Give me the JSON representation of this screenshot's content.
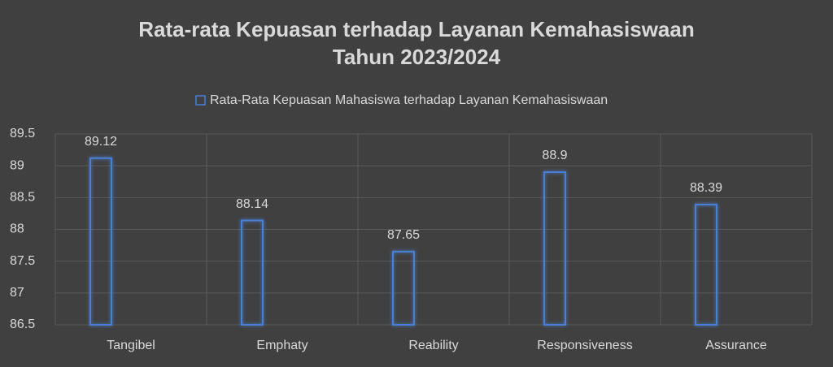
{
  "chart_data": {
    "type": "bar",
    "title": [
      "Rata-rata Kepuasan terhadap Layanan Kemahasiswaan",
      "Tahun 2023/2024"
    ],
    "categories": [
      "Tangibel",
      "Emphaty",
      "Reability",
      "Responsiveness",
      "Assurance"
    ],
    "series": [
      {
        "name": "Rata-Rata Kepuasan Mahasiswa terhadap Layanan Kemahasiswaan",
        "color": "#4a7fd4",
        "values": [
          89.12,
          88.14,
          87.65,
          88.9,
          88.39
        ]
      }
    ],
    "ylim": [
      86.5,
      89.5
    ],
    "yticks": [
      86.5,
      87,
      87.5,
      88,
      88.5,
      89,
      89.5
    ],
    "grid": true,
    "legend": "top"
  }
}
